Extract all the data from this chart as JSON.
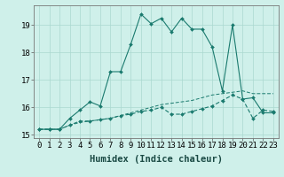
{
  "title": "",
  "xlabel": "Humidex (Indice chaleur)",
  "ylabel": "",
  "background_color": "#cff0ea",
  "grid_color": "#aad9d0",
  "line_color": "#1a7a6e",
  "xlim": [
    -0.5,
    23.5
  ],
  "ylim": [
    14.88,
    19.72
  ],
  "x": [
    0,
    1,
    2,
    3,
    4,
    5,
    6,
    7,
    8,
    9,
    10,
    11,
    12,
    13,
    14,
    15,
    16,
    17,
    18,
    19,
    20,
    21,
    22,
    23
  ],
  "line1": [
    15.2,
    15.2,
    15.2,
    15.6,
    15.9,
    16.2,
    16.05,
    17.3,
    17.3,
    18.3,
    19.4,
    19.05,
    19.25,
    18.75,
    19.25,
    18.85,
    18.85,
    18.2,
    16.6,
    19.0,
    16.3,
    16.35,
    15.8,
    15.8
  ],
  "line2": [
    15.2,
    15.2,
    15.2,
    15.35,
    15.5,
    15.5,
    15.55,
    15.6,
    15.7,
    15.75,
    15.85,
    15.9,
    16.0,
    15.75,
    15.75,
    15.85,
    15.95,
    16.05,
    16.25,
    16.45,
    16.3,
    15.6,
    15.9,
    15.85
  ],
  "line3": [
    15.2,
    15.2,
    15.2,
    15.35,
    15.45,
    15.5,
    15.55,
    15.6,
    15.7,
    15.8,
    15.9,
    16.0,
    16.1,
    16.15,
    16.2,
    16.25,
    16.35,
    16.45,
    16.5,
    16.55,
    16.6,
    16.5,
    16.5,
    16.5
  ],
  "xtick_labels": [
    "0",
    "1",
    "2",
    "3",
    "4",
    "5",
    "6",
    "7",
    "8",
    "9",
    "10",
    "11",
    "12",
    "13",
    "14",
    "15",
    "16",
    "17",
    "18",
    "19",
    "20",
    "21",
    "22",
    "23"
  ],
  "ytick_values": [
    15,
    16,
    17,
    18,
    19
  ],
  "tick_fontsize": 6.5,
  "label_fontsize": 7.5
}
